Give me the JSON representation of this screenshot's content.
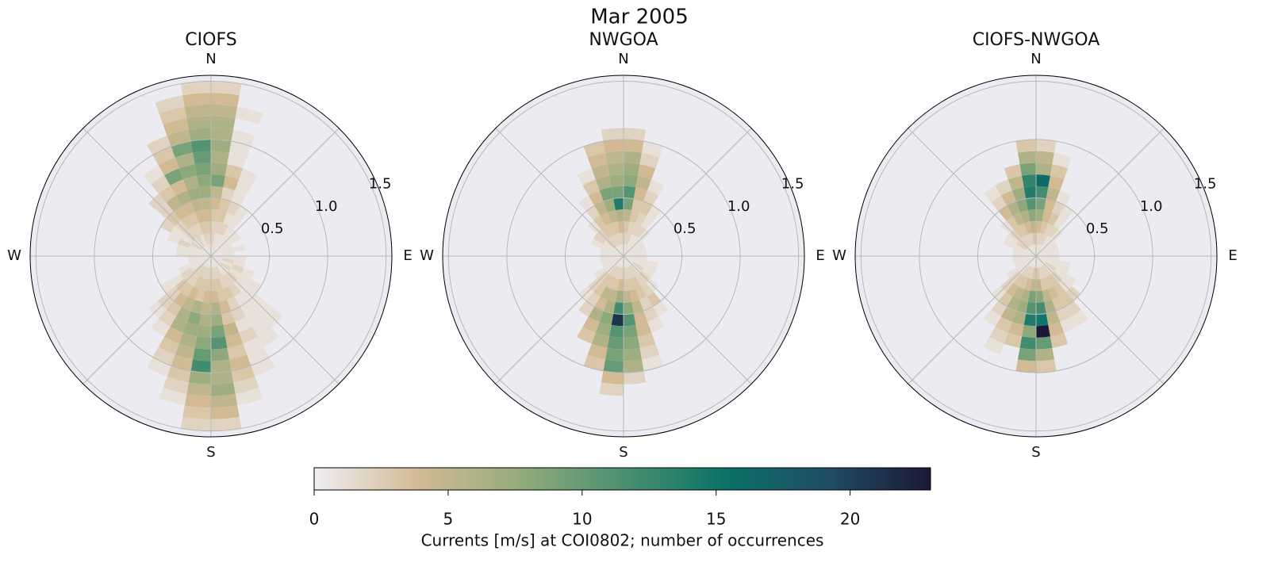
{
  "figure_title": "Mar 2005",
  "colorbar": {
    "label": "Currents [m/s] at COI0802; number of occurrences",
    "lim": [
      0,
      23
    ],
    "ticks": [
      0,
      5,
      10,
      15,
      20
    ],
    "colormap": [
      "#efeef2",
      "#d4bb95",
      "#93ab7c",
      "#4b9070",
      "#0b7268",
      "#1f4d63",
      "#1c1935"
    ]
  },
  "chart_data": [
    {
      "type": "polar_histogram",
      "title": "CIOFS",
      "theta_labels": [
        "N",
        "E",
        "S",
        "W"
      ],
      "rlim": [
        0,
        1.55
      ],
      "rticks": [
        0.5,
        {
          "value": 1,
          "label": "1.0"
        },
        1.5
      ],
      "speed_bins": [
        0,
        0.1,
        0.2,
        0.3,
        0.4,
        0.5,
        0.6,
        0.7,
        0.8,
        0.9,
        1.0,
        1.1,
        1.2,
        1.3,
        1.4,
        1.5
      ],
      "counts": [
        [
          1,
          2,
          2,
          3,
          4,
          5,
          9,
          7,
          6,
          7,
          6,
          6,
          5,
          4,
          2
        ],
        [
          1,
          1,
          2,
          3,
          3,
          2,
          4,
          3,
          1,
          1,
          1,
          0,
          1
        ],
        [
          1,
          1,
          2,
          1,
          2,
          1,
          1,
          1
        ],
        [
          1,
          1,
          1,
          1,
          1
        ],
        [
          0,
          1,
          1
        ],
        [
          1,
          1,
          1
        ],
        [
          1,
          1
        ],
        [
          0,
          1,
          1
        ],
        [
          1,
          1
        ],
        [
          1,
          1,
          1
        ],
        [
          1,
          2,
          1
        ],
        [
          1,
          1,
          2,
          1
        ],
        [
          1,
          2,
          1,
          1,
          1
        ],
        [
          1,
          1,
          2,
          1,
          1,
          1,
          1,
          1
        ],
        [
          1,
          1,
          2,
          2,
          1,
          1,
          1,
          1,
          1
        ],
        [
          1,
          2,
          2,
          3,
          2,
          2,
          1,
          2,
          1,
          1,
          1
        ],
        [
          1,
          2,
          3,
          3,
          4,
          3,
          5,
          4,
          3,
          4,
          3,
          2,
          1
        ],
        [
          1,
          2,
          3,
          4,
          6,
          7,
          9,
          11,
          8,
          6,
          6,
          7,
          5,
          4,
          2
        ],
        [
          1,
          2,
          3,
          4,
          5,
          6,
          7,
          8,
          10,
          12,
          7,
          5,
          4,
          3,
          2
        ],
        [
          1,
          2,
          3,
          3,
          6,
          8,
          7,
          6,
          5,
          4,
          3,
          2,
          1
        ],
        [
          1,
          2,
          3,
          4,
          5,
          6,
          6,
          4,
          3,
          2,
          1
        ],
        [
          1,
          2,
          2,
          3,
          4,
          3,
          2,
          1
        ],
        [
          1,
          2,
          2,
          3,
          2,
          2,
          1
        ],
        [
          1,
          1,
          2,
          1,
          1
        ],
        [
          1,
          1,
          1
        ],
        [
          1,
          1
        ],
        [
          1,
          1
        ],
        [
          1,
          1,
          1
        ],
        [
          1,
          1,
          1
        ],
        [
          1,
          1,
          2,
          1
        ],
        [
          1,
          2,
          1,
          1,
          2
        ],
        [
          1,
          1,
          2,
          2,
          3,
          2,
          2
        ],
        [
          1,
          2,
          2,
          3,
          4,
          5,
          3,
          2,
          1
        ],
        [
          1,
          1,
          2,
          3,
          4,
          6,
          4,
          9,
          4,
          3,
          2
        ],
        [
          1,
          2,
          3,
          4,
          5,
          7,
          6,
          8,
          6,
          9,
          5,
          4,
          3,
          2
        ],
        [
          1,
          2,
          3,
          4,
          5,
          7,
          8,
          9,
          10,
          11,
          7,
          6,
          5,
          4,
          2
        ]
      ]
    },
    {
      "type": "polar_histogram",
      "title": "NWGOA",
      "theta_labels": [
        "N",
        "E",
        "S",
        "W"
      ],
      "rlim": [
        0,
        1.55
      ],
      "rticks": [
        0.5,
        {
          "value": 1,
          "label": "1.0"
        },
        1.5
      ],
      "speed_bins": [
        0,
        0.1,
        0.2,
        0.3,
        0.4,
        0.5,
        0.6,
        0.7,
        0.8,
        0.9,
        1.0,
        1.1,
        1.2,
        1.3,
        1.4,
        1.5
      ],
      "counts": [
        [
          1,
          2,
          3,
          5,
          9,
          11,
          8,
          7,
          6,
          4,
          2
        ],
        [
          1,
          2,
          2,
          3,
          3,
          4,
          5,
          4,
          2,
          1
        ],
        [
          1,
          1,
          2,
          2,
          3,
          2,
          1
        ],
        [
          1,
          1,
          2,
          1,
          1
        ],
        [
          1,
          1,
          1
        ],
        [
          1,
          1
        ],
        [
          1,
          1
        ],
        [
          1,
          1
        ],
        [
          1,
          1
        ],
        [
          1,
          1
        ],
        [
          1,
          1,
          1
        ],
        [
          1,
          1,
          1
        ],
        [
          1,
          2,
          1
        ],
        [
          1,
          1,
          2,
          1
        ],
        [
          1,
          2,
          2,
          2,
          3,
          1
        ],
        [
          1,
          2,
          3,
          3,
          2,
          2,
          1
        ],
        [
          1,
          2,
          3,
          4,
          5,
          4,
          4,
          3,
          2,
          1
        ],
        [
          1,
          2,
          3,
          5,
          8,
          11,
          9,
          8,
          7,
          6,
          2
        ],
        [
          1,
          2,
          4,
          7,
          12,
          21,
          11,
          10,
          9,
          10,
          4,
          2
        ],
        [
          1,
          2,
          3,
          5,
          6,
          8,
          7,
          6,
          4,
          3
        ],
        [
          1,
          2,
          3,
          5,
          4,
          6,
          4,
          3
        ],
        [
          1,
          2,
          3,
          3,
          2,
          2
        ],
        [
          1,
          1,
          2,
          2,
          1
        ],
        [
          1,
          1,
          1
        ],
        [
          1,
          1
        ],
        [
          1,
          1
        ],
        [
          1,
          1
        ],
        [
          1,
          1
        ],
        [
          1,
          1
        ],
        [
          1,
          1,
          1
        ],
        [
          1,
          1,
          2
        ],
        [
          1,
          2,
          2,
          1
        ],
        [
          1,
          2,
          3,
          3,
          2,
          1
        ],
        [
          1,
          2,
          3,
          4,
          5,
          4,
          3,
          1
        ],
        [
          1,
          2,
          3,
          5,
          7,
          9,
          6,
          5,
          4,
          3
        ],
        [
          1,
          2,
          4,
          6,
          14,
          9,
          7,
          6,
          5,
          4,
          2
        ]
      ]
    },
    {
      "type": "polar_histogram",
      "title": "CIOFS-NWGOA",
      "theta_labels": [
        "N",
        "E",
        "S",
        "W"
      ],
      "rlim": [
        0,
        1.55
      ],
      "rticks": [
        0.5,
        {
          "value": 1,
          "label": "1.0"
        },
        1.5
      ],
      "speed_bins": [
        0,
        0.1,
        0.2,
        0.3,
        0.4,
        0.5,
        0.6,
        0.7,
        0.8,
        0.9,
        1.0,
        1.1,
        1.2,
        1.3,
        1.4,
        1.5
      ],
      "counts": [
        [
          1,
          2,
          4,
          7,
          9,
          12,
          16,
          6,
          5,
          2
        ],
        [
          1,
          2,
          3,
          4,
          4,
          5,
          4,
          3,
          1
        ],
        [
          1,
          2,
          2,
          3,
          2,
          1
        ],
        [
          1,
          1,
          2,
          1,
          1
        ],
        [
          1,
          1,
          1
        ],
        [
          1,
          1
        ],
        [
          1,
          1
        ],
        [
          1,
          1
        ],
        [
          1,
          1
        ],
        [
          1,
          1
        ],
        [
          1,
          1,
          1
        ],
        [
          1,
          1,
          1
        ],
        [
          1,
          2,
          1,
          1
        ],
        [
          1,
          1,
          2,
          1,
          2
        ],
        [
          1,
          2,
          3,
          3,
          3,
          2,
          1
        ],
        [
          1,
          2,
          3,
          4,
          3,
          2,
          1
        ],
        [
          1,
          2,
          3,
          5,
          6,
          5,
          4,
          3
        ],
        [
          1,
          3,
          5,
          8,
          12,
          15,
          23,
          10,
          6,
          3
        ],
        [
          1,
          3,
          5,
          9,
          11,
          14,
          8,
          12,
          9,
          4
        ],
        [
          1,
          2,
          4,
          6,
          7,
          6,
          4,
          3
        ],
        [
          1,
          2,
          3,
          5,
          6,
          5,
          3,
          2,
          1
        ],
        [
          1,
          2,
          3,
          4,
          3,
          2,
          1
        ],
        [
          1,
          1,
          2,
          2,
          1
        ],
        [
          1,
          1,
          1
        ],
        [
          1,
          1
        ],
        [
          1,
          1
        ],
        [
          1,
          1
        ],
        [
          1,
          1
        ],
        [
          1,
          1
        ],
        [
          1,
          1,
          1
        ],
        [
          1,
          2,
          1
        ],
        [
          1,
          2,
          2,
          1
        ],
        [
          1,
          2,
          3,
          3,
          4,
          2,
          1
        ],
        [
          1,
          2,
          3,
          5,
          6,
          4,
          2
        ],
        [
          1,
          2,
          4,
          6,
          8,
          7,
          5,
          3
        ],
        [
          1,
          3,
          5,
          8,
          11,
          14,
          13,
          9,
          6,
          3
        ]
      ]
    }
  ]
}
